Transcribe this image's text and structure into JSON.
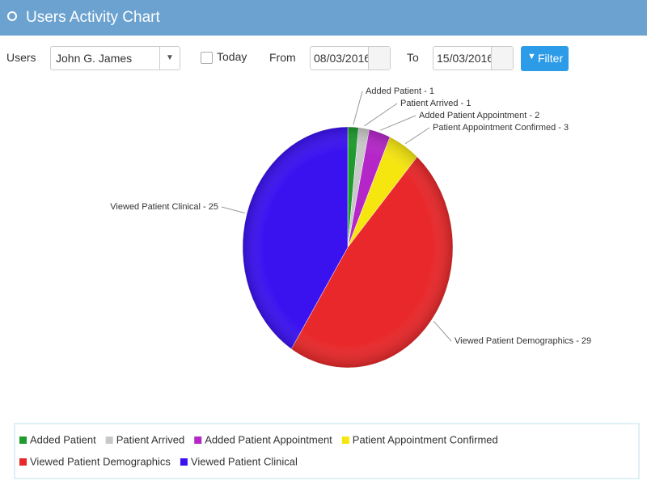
{
  "header": {
    "title": "Users Activity Chart"
  },
  "filters": {
    "users_label": "Users",
    "user": "John G. James",
    "today_label": "Today",
    "from_label": "From",
    "from_date": "08/03/2016",
    "to_label": "To",
    "to_date": "15/03/2016",
    "button": "Filter"
  },
  "chart_data": {
    "type": "pie",
    "categories": [
      "Added Patient",
      "Patient Arrived",
      "Added Patient Appointment",
      "Patient Appointment Confirmed",
      "Viewed Patient Demographics",
      "Viewed Patient Clinical"
    ],
    "values": [
      1,
      1,
      2,
      3,
      29,
      25
    ],
    "value_labels": [
      "Added Patient - 1",
      "Patient Arrived - 1",
      "Added Patient Appointment - 2",
      "Patient Appointment Confirmed - 3",
      "Viewed Patient Demographics - 29",
      "Viewed Patient Clinical - 25"
    ],
    "colors": [
      "#1e9a2e",
      "#c8c8c8",
      "#b426c8",
      "#f5e60f",
      "#e8282a",
      "#3a12f0"
    ],
    "legend": "bottom"
  }
}
